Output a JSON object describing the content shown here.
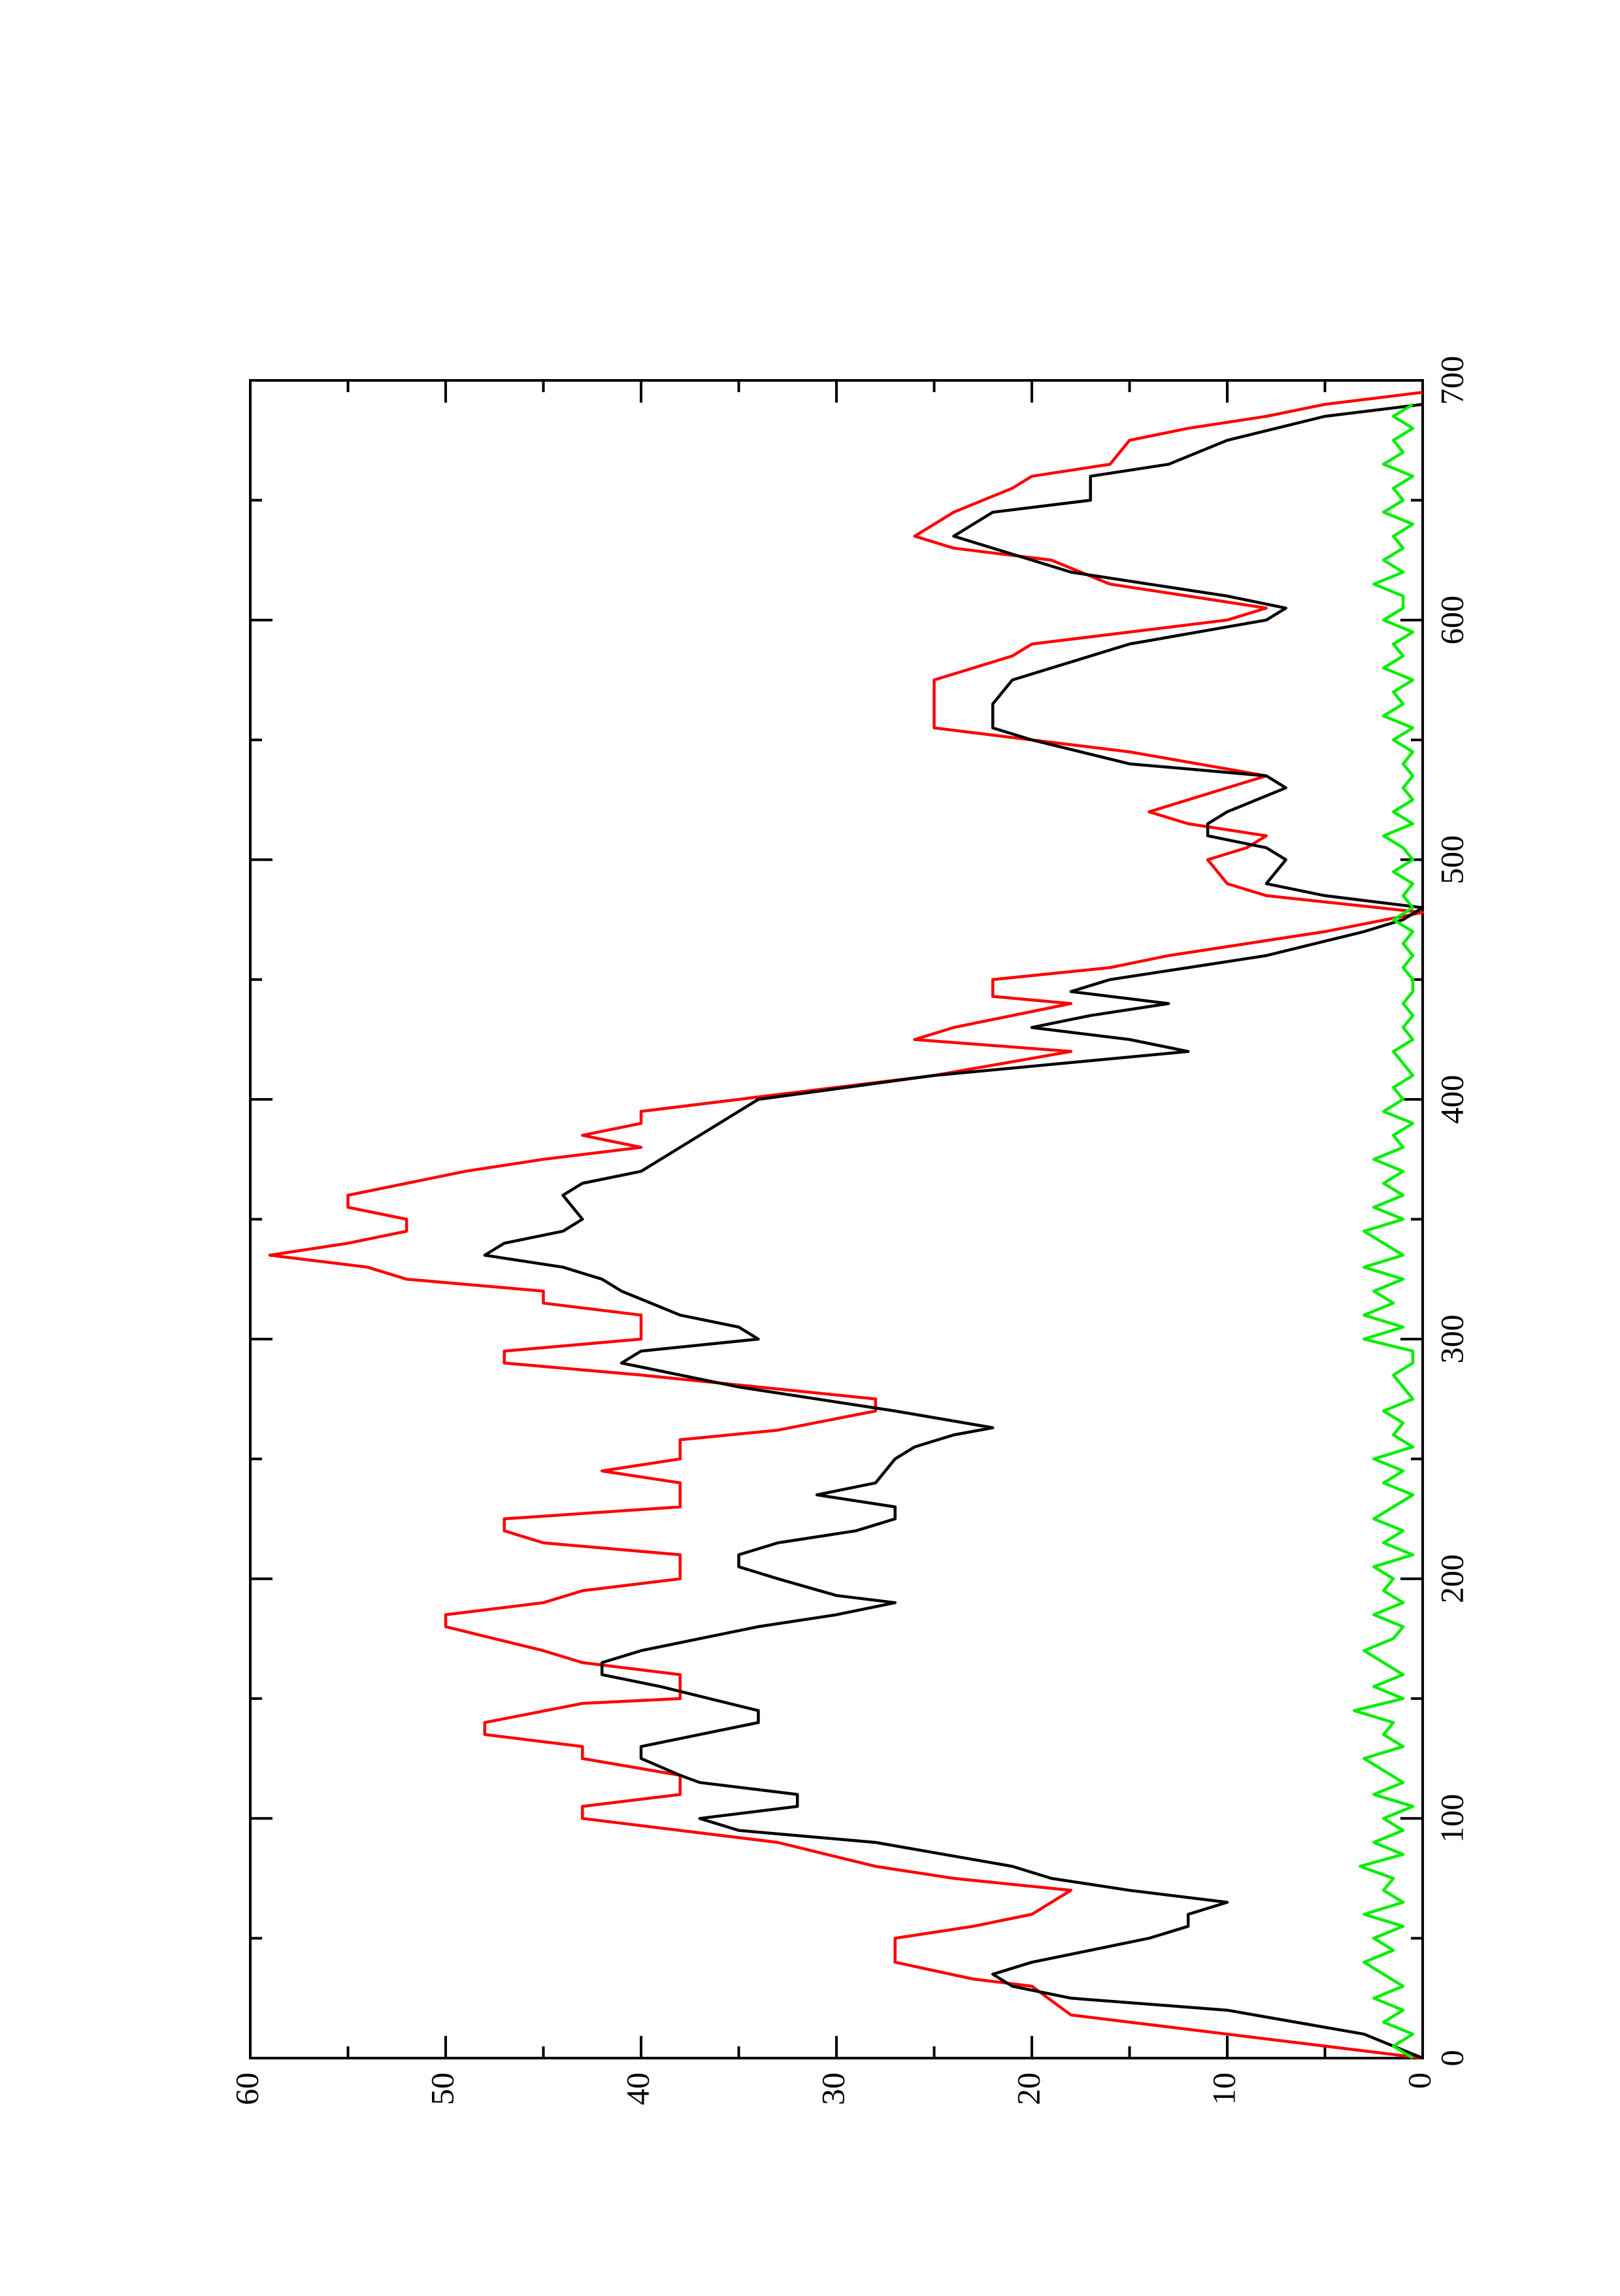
{
  "chart_data": {
    "type": "line",
    "xlim": [
      0,
      700
    ],
    "ylim": [
      0,
      60
    ],
    "xticks": [
      0,
      100,
      200,
      300,
      400,
      500,
      600,
      700
    ],
    "xminorticks": [
      50,
      150,
      250,
      350,
      450,
      550,
      650
    ],
    "yticks": [
      0,
      10,
      20,
      30,
      40,
      50,
      60
    ],
    "yminorticks": [
      5,
      15,
      25,
      35,
      45,
      55
    ],
    "series": [
      {
        "color": "#ff0000",
        "x": [
          0,
          10,
          18,
          30,
          33,
          40,
          50,
          55,
          60,
          70,
          75,
          80,
          90,
          100,
          105,
          110,
          118,
          125,
          130,
          135,
          140,
          148,
          150,
          160,
          165,
          170,
          180,
          185,
          190,
          195,
          200,
          210,
          215,
          220,
          225,
          230,
          240,
          245,
          250,
          258,
          262,
          270,
          275,
          285,
          290,
          295,
          300,
          310,
          315,
          320,
          325,
          330,
          335,
          340,
          345,
          350,
          355,
          360,
          370,
          375,
          380,
          385,
          390,
          395,
          400,
          410,
          420,
          425,
          430,
          440,
          443,
          450,
          455,
          460,
          470,
          478,
          485,
          490,
          500,
          505,
          510,
          515,
          520,
          525,
          535,
          545,
          550,
          555,
          575,
          585,
          590,
          600,
          605,
          610,
          615,
          625,
          630,
          635,
          645,
          655,
          660,
          665,
          675,
          680,
          685,
          690,
          695
        ],
        "values": [
          0,
          10,
          18,
          20,
          23,
          27,
          27,
          23,
          20,
          18,
          24,
          28,
          33,
          43,
          43,
          38,
          38,
          43,
          43,
          48,
          48,
          43,
          38,
          38,
          43,
          45,
          50,
          50,
          45,
          43,
          38,
          38,
          45,
          47,
          47,
          38,
          38,
          42,
          38,
          38,
          33,
          28,
          28,
          40,
          47,
          47,
          40,
          40,
          45,
          45,
          52,
          54,
          59,
          55,
          52,
          52,
          55,
          55,
          49,
          45,
          40,
          43,
          40,
          40,
          35,
          25,
          18,
          26,
          24,
          18,
          22,
          22,
          16,
          13,
          5,
          0,
          8,
          10,
          11,
          9,
          8,
          12,
          14,
          12,
          8,
          15,
          20,
          25,
          25,
          21,
          20,
          10,
          8,
          12,
          16,
          19,
          24,
          26,
          24,
          21,
          20,
          16,
          15,
          12,
          8,
          5,
          0
        ]
      },
      {
        "color": "#000000",
        "x": [
          0,
          10,
          20,
          25,
          30,
          35,
          40,
          45,
          50,
          55,
          60,
          65,
          70,
          75,
          80,
          90,
          95,
          100,
          105,
          110,
          115,
          118,
          125,
          130,
          135,
          140,
          145,
          155,
          160,
          165,
          170,
          175,
          180,
          185,
          190,
          193,
          200,
          205,
          210,
          215,
          220,
          225,
          230,
          235,
          240,
          250,
          255,
          260,
          263,
          270,
          280,
          290,
          295,
          300,
          305,
          310,
          320,
          325,
          330,
          335,
          340,
          345,
          350,
          360,
          365,
          370,
          380,
          390,
          400,
          410,
          420,
          425,
          430,
          435,
          440,
          445,
          450,
          455,
          460,
          470,
          475,
          480,
          485,
          490,
          500,
          505,
          510,
          515,
          520,
          530,
          535,
          540,
          550,
          555,
          565,
          575,
          590,
          600,
          605,
          610,
          620,
          625,
          635,
          640,
          645,
          650,
          660,
          665,
          675,
          685,
          690
        ],
        "values": [
          0,
          3,
          10,
          18,
          21,
          22,
          20,
          17,
          14,
          12,
          12,
          10,
          15,
          19,
          21,
          28,
          35,
          37,
          32,
          32,
          37,
          38,
          40,
          40,
          37,
          34,
          34,
          39,
          42,
          42,
          40,
          37,
          34,
          30,
          27,
          30,
          33,
          35,
          35,
          33,
          29,
          27,
          27,
          31,
          28,
          27,
          26,
          24,
          22,
          27,
          35,
          41,
          40,
          34,
          35,
          38,
          41,
          42,
          44,
          48,
          47,
          44,
          43,
          44,
          43,
          40,
          38,
          36,
          34,
          25,
          12,
          15,
          20,
          17,
          13,
          18,
          16,
          12,
          8,
          3,
          1,
          0,
          5,
          8,
          7,
          8,
          11,
          11,
          10,
          7,
          8,
          15,
          20,
          22,
          22,
          21,
          15,
          8,
          7,
          10,
          18,
          20,
          24,
          23,
          22,
          17,
          17,
          13,
          10,
          5,
          0
        ]
      },
      {
        "color": "#00ee00",
        "x": [
          0,
          5,
          10,
          15,
          20,
          25,
          30,
          35,
          40,
          45,
          50,
          55,
          60,
          65,
          70,
          75,
          80,
          85,
          90,
          95,
          100,
          105,
          110,
          115,
          120,
          125,
          130,
          135,
          140,
          145,
          150,
          155,
          160,
          165,
          170,
          175,
          180,
          185,
          190,
          195,
          200,
          205,
          210,
          215,
          220,
          225,
          230,
          235,
          240,
          245,
          250,
          255,
          260,
          265,
          270,
          275,
          280,
          285,
          290,
          295,
          300,
          305,
          310,
          315,
          320,
          325,
          330,
          335,
          340,
          345,
          350,
          355,
          360,
          365,
          370,
          375,
          380,
          385,
          390,
          395,
          400,
          405,
          410,
          415,
          420,
          425,
          430,
          435,
          440,
          445,
          450,
          455,
          460,
          465,
          470,
          475,
          480,
          485,
          490,
          495,
          500,
          505,
          510,
          515,
          520,
          525,
          530,
          535,
          540,
          545,
          550,
          555,
          560,
          565,
          570,
          575,
          580,
          585,
          590,
          595,
          600,
          605,
          610,
          615,
          620,
          625,
          630,
          635,
          640,
          645,
          650,
          655,
          660,
          665,
          670,
          675,
          680,
          685,
          690
        ],
        "values": [
          0.5,
          1.5,
          0.5,
          2,
          1,
          2.5,
          1,
          2,
          3,
          1.5,
          2.5,
          1,
          3,
          1,
          2,
          1.5,
          3.2,
          1,
          2.5,
          1,
          2,
          0.5,
          2.5,
          1,
          2,
          3,
          1,
          2,
          1.5,
          3.5,
          1,
          2.5,
          1,
          2,
          3,
          1.5,
          1,
          2.5,
          1,
          2,
          1.5,
          2.5,
          0.5,
          2,
          1,
          2.5,
          1.5,
          0.5,
          2,
          1,
          2.5,
          0.5,
          1.5,
          1,
          2,
          0.5,
          1,
          1.5,
          0.5,
          0.5,
          3,
          1,
          3,
          1.5,
          2.5,
          1,
          3,
          1,
          2,
          3,
          1,
          2.5,
          1,
          2,
          1,
          2.5,
          1,
          1.5,
          0.5,
          2,
          1,
          1.5,
          0.5,
          1,
          1.5,
          0.5,
          1,
          0.5,
          1,
          0.5,
          0.5,
          1,
          0.5,
          1,
          0.5,
          1.5,
          0.5,
          1,
          0.5,
          1.5,
          0.5,
          1,
          2,
          0.5,
          1.5,
          0.5,
          1,
          0.5,
          1,
          0.5,
          1.5,
          0.5,
          2,
          1,
          1.5,
          0.5,
          2,
          1,
          1.5,
          0.5,
          2,
          1,
          1,
          2.5,
          1,
          2,
          1,
          1.5,
          0.5,
          2,
          1,
          1.5,
          0.5,
          2,
          1,
          1.5,
          0.5,
          1.5,
          0.5
        ]
      }
    ]
  }
}
